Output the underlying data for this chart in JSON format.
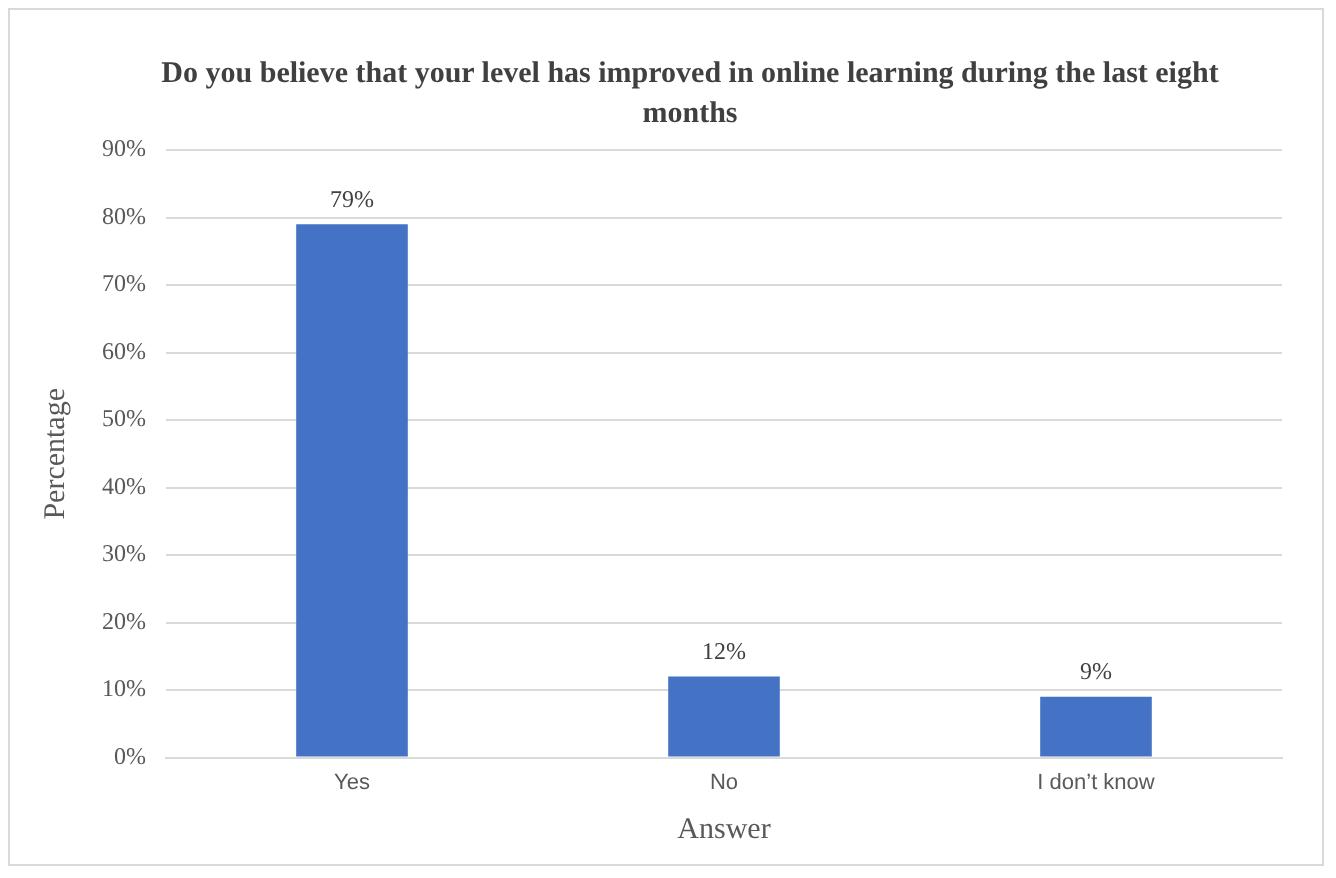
{
  "chart_data": {
    "type": "bar",
    "title": "Do you believe that your level has improved in online learning during the last eight months",
    "xlabel": "Answer",
    "ylabel": "Percentage",
    "categories": [
      "Yes",
      "No",
      "I don’t know"
    ],
    "values": [
      79,
      12,
      9
    ],
    "color": "#4472c4",
    "value_labels": [
      "79%",
      "12%",
      "9%"
    ],
    "ylim": [
      0,
      90
    ],
    "yticks": [
      {
        "value": 0,
        "label": "0%"
      },
      {
        "value": 10,
        "label": "10%"
      },
      {
        "value": 20,
        "label": "20%"
      },
      {
        "value": 30,
        "label": "30%"
      },
      {
        "value": 40,
        "label": "40%"
      },
      {
        "value": 50,
        "label": "50%"
      },
      {
        "value": 60,
        "label": "60%"
      },
      {
        "value": 70,
        "label": "70%"
      },
      {
        "value": 80,
        "label": "80%"
      },
      {
        "value": 90,
        "label": "90%"
      }
    ],
    "grid": "y"
  }
}
